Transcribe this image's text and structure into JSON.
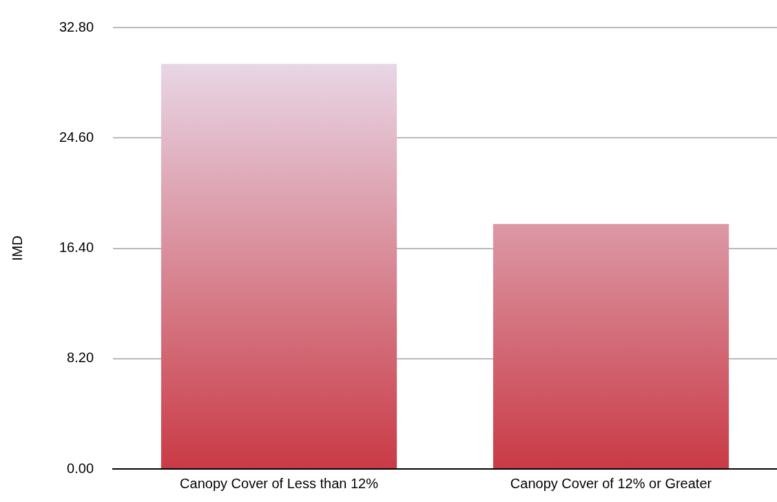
{
  "chart_data": {
    "type": "bar",
    "ylabel": "IMD",
    "categories": [
      "Canopy Cover of Less than 12%",
      "Canopy Cover of 12% or Greater"
    ],
    "values": [
      30.1,
      18.2
    ],
    "color": "#c93a45",
    "ylim": [
      0,
      32.8
    ],
    "yticks": [
      {
        "value": 0,
        "label": "0.00"
      },
      {
        "value": 8.2,
        "label": "8.20"
      },
      {
        "value": 16.4,
        "label": "16.40"
      },
      {
        "value": 24.6,
        "label": "24.60"
      },
      {
        "value": 32.8,
        "label": "32.80"
      }
    ],
    "grid": "y",
    "legend": false
  }
}
